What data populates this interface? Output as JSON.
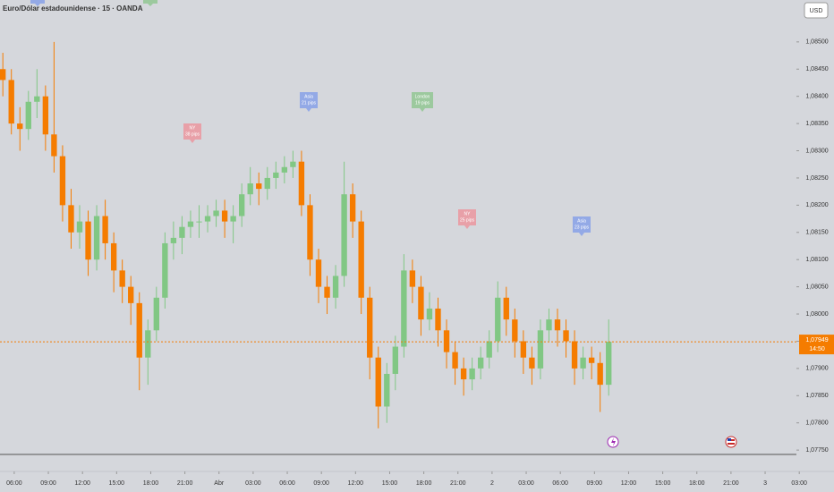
{
  "header": {
    "title": "Euro/Dólar estadounidense · 15 · OANDA",
    "currency_button": "USD"
  },
  "chart_data": {
    "type": "candlestick",
    "x": [
      0,
      3,
      6,
      9,
      12,
      15,
      18,
      21,
      24,
      27,
      30,
      33,
      36,
      39,
      42,
      45,
      48,
      51,
      54,
      57,
      60,
      63,
      66,
      69,
      72,
      75,
      78,
      81,
      84,
      87,
      90,
      93,
      96,
      99,
      102,
      105,
      108,
      111,
      114,
      117,
      120,
      123,
      126,
      129,
      132,
      135,
      138,
      141,
      144,
      147,
      150,
      153,
      156,
      159,
      162,
      165,
      168,
      171,
      174,
      177,
      180,
      183,
      186,
      189,
      192,
      195,
      198,
      201,
      204,
      207,
      210,
      213
    ],
    "open": [
      1.0845,
      1.0843,
      1.0835,
      1.0834,
      1.0839,
      1.084,
      1.0833,
      1.0829,
      1.082,
      1.0815,
      1.0817,
      1.081,
      1.0818,
      1.0813,
      1.0808,
      1.0805,
      1.0802,
      1.0792,
      1.0797,
      1.0803,
      1.0813,
      1.0814,
      1.0816,
      1.0817,
      1.0817,
      1.0818,
      1.0819,
      1.0817,
      1.0818,
      1.0822,
      1.0824,
      1.0823,
      1.0825,
      1.0826,
      1.0827,
      1.0828,
      1.082,
      1.081,
      1.0805,
      1.0803,
      1.0807,
      1.0822,
      1.0817,
      1.0803,
      1.0792,
      1.0783,
      1.0789,
      1.0794,
      1.0808,
      1.0805,
      1.0799,
      1.0801,
      1.0797,
      1.0793,
      1.079,
      1.0788,
      1.079,
      1.0792,
      1.0795,
      1.0803,
      1.0799,
      1.0795,
      1.0792,
      1.079,
      1.0797,
      1.0799,
      1.0797,
      1.0795,
      1.079,
      1.0792,
      1.0791,
      1.0787
    ],
    "high": [
      1.0848,
      1.0845,
      1.0838,
      1.0841,
      1.0845,
      1.0842,
      1.085,
      1.0831,
      1.0823,
      1.082,
      1.0819,
      1.082,
      1.0821,
      1.0815,
      1.081,
      1.0807,
      1.0804,
      1.0799,
      1.0805,
      1.0815,
      1.0817,
      1.0818,
      1.0819,
      1.082,
      1.082,
      1.0821,
      1.0821,
      1.082,
      1.0824,
      1.0827,
      1.0826,
      1.0827,
      1.0828,
      1.0829,
      1.083,
      1.083,
      1.0822,
      1.0812,
      1.0807,
      1.0809,
      1.0828,
      1.0824,
      1.0819,
      1.0805,
      1.0794,
      1.0791,
      1.0796,
      1.0811,
      1.081,
      1.0807,
      1.0804,
      1.0803,
      1.0799,
      1.0795,
      1.0792,
      1.0792,
      1.0794,
      1.0797,
      1.0806,
      1.0805,
      1.0801,
      1.0797,
      1.0794,
      1.0799,
      1.0801,
      1.0801,
      1.0799,
      1.0797,
      1.0794,
      1.0794,
      1.0793,
      1.0799
    ],
    "low": [
      1.084,
      1.0833,
      1.083,
      1.0832,
      1.0836,
      1.083,
      1.0826,
      1.0817,
      1.0812,
      1.0812,
      1.0807,
      1.0808,
      1.081,
      1.0804,
      1.0802,
      1.0798,
      1.0786,
      1.0787,
      1.0795,
      1.0801,
      1.081,
      1.0811,
      1.0814,
      1.0814,
      1.0815,
      1.0816,
      1.0814,
      1.0813,
      1.0816,
      1.082,
      1.082,
      1.0821,
      1.0823,
      1.0824,
      1.0825,
      1.0818,
      1.0807,
      1.0802,
      1.08,
      1.0801,
      1.0805,
      1.0814,
      1.08,
      1.0788,
      1.0779,
      1.078,
      1.0786,
      1.0792,
      1.0802,
      1.0796,
      1.0797,
      1.0794,
      1.079,
      1.0787,
      1.0785,
      1.0786,
      1.0788,
      1.079,
      1.0793,
      1.0796,
      1.0792,
      1.0789,
      1.0787,
      1.0788,
      1.0795,
      1.0794,
      1.0792,
      1.0787,
      1.0788,
      1.0788,
      1.0782,
      1.0785
    ],
    "close": [
      1.0843,
      1.0835,
      1.0834,
      1.0839,
      1.084,
      1.0833,
      1.0829,
      1.082,
      1.0815,
      1.0817,
      1.081,
      1.0818,
      1.0813,
      1.0808,
      1.0805,
      1.0802,
      1.0792,
      1.0797,
      1.0803,
      1.0813,
      1.0814,
      1.0816,
      1.0817,
      1.0817,
      1.0818,
      1.0819,
      1.0817,
      1.0818,
      1.0822,
      1.0824,
      1.0823,
      1.0825,
      1.0826,
      1.0827,
      1.0828,
      1.082,
      1.081,
      1.0805,
      1.0803,
      1.0807,
      1.0822,
      1.0817,
      1.0803,
      1.0792,
      1.0783,
      1.0789,
      1.0794,
      1.0808,
      1.0805,
      1.0799,
      1.0801,
      1.0797,
      1.0793,
      1.079,
      1.0788,
      1.079,
      1.0792,
      1.0795,
      1.0803,
      1.0799,
      1.0795,
      1.0792,
      1.079,
      1.0797,
      1.0799,
      1.0797,
      1.0795,
      1.079,
      1.0792,
      1.0791,
      1.0787,
      1.07949
    ],
    "up_color": "#81c784",
    "down_color": "#f57c00",
    "xlim": [
      -1,
      279
    ],
    "xticks": [
      {
        "value": 4,
        "label": "06:00"
      },
      {
        "value": 16,
        "label": "09:00"
      },
      {
        "value": 28,
        "label": "12:00"
      },
      {
        "value": 40,
        "label": "15:00"
      },
      {
        "value": 52,
        "label": "18:00"
      },
      {
        "value": 64,
        "label": "21:00"
      },
      {
        "value": 76,
        "label": "Abr"
      },
      {
        "value": 88,
        "label": "03:00"
      },
      {
        "value": 100,
        "label": "06:00"
      },
      {
        "value": 112,
        "label": "09:00"
      },
      {
        "value": 124,
        "label": "12:00"
      },
      {
        "value": 136,
        "label": "15:00"
      },
      {
        "value": 148,
        "label": "18:00"
      },
      {
        "value": 160,
        "label": "21:00"
      },
      {
        "value": 172,
        "label": "2"
      },
      {
        "value": 184,
        "label": "03:00"
      },
      {
        "value": 196,
        "label": "06:00"
      },
      {
        "value": 208,
        "label": "09:00"
      },
      {
        "value": 220,
        "label": "12:00"
      },
      {
        "value": 232,
        "label": "15:00"
      },
      {
        "value": 244,
        "label": "18:00"
      },
      {
        "value": 256,
        "label": "21:00"
      },
      {
        "value": 268,
        "label": "3"
      },
      {
        "value": 280,
        "label": "03:00"
      }
    ],
    "ylim": [
      1.07742,
      1.08577
    ],
    "yticks": [
      {
        "value": 1.0775,
        "label": "1,07750"
      },
      {
        "value": 1.078,
        "label": "1,07800"
      },
      {
        "value": 1.0785,
        "label": "1,07850"
      },
      {
        "value": 1.079,
        "label": "1,07900"
      },
      {
        "value": 1.0795,
        "label": "1,07950"
      },
      {
        "value": 1.08,
        "label": "1,08000"
      },
      {
        "value": 1.0805,
        "label": "1,08050"
      },
      {
        "value": 1.081,
        "label": "1,08100"
      },
      {
        "value": 1.0815,
        "label": "1,08150"
      },
      {
        "value": 1.082,
        "label": "1,08200"
      },
      {
        "value": 1.0825,
        "label": "1,08250"
      },
      {
        "value": 1.083,
        "label": "1,08300"
      },
      {
        "value": 1.0835,
        "label": "1,08350"
      },
      {
        "value": 1.084,
        "label": "1,08400"
      },
      {
        "value": 1.0845,
        "label": "1,08450"
      },
      {
        "value": 1.085,
        "label": "1,08500"
      }
    ],
    "grid": false,
    "last_price": {
      "value": 1.07949,
      "label": "1,07949"
    },
    "countdown": "14:50",
    "last_price_color": "#f57c00",
    "annotations": [
      {
        "session": "NY",
        "pips": "38 pips",
        "color": "#e8a0a8"
      },
      {
        "session": "Asia",
        "pips": "21 pips",
        "color": "#93a9e6"
      },
      {
        "session": "London",
        "pips": "19 pips",
        "color": "#9cc99e"
      },
      {
        "session": "NY",
        "pips": "25 pips",
        "color": "#e8a0a8"
      },
      {
        "session": "Asia",
        "pips": "23 pips",
        "color": "#93a9e6"
      }
    ]
  }
}
